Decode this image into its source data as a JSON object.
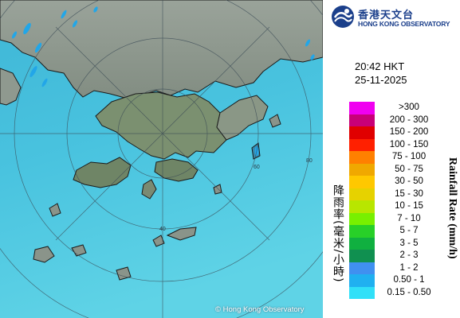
{
  "map": {
    "copyright": "© Hong Kong Observatory",
    "ring_labels": [
      "40",
      "60",
      "80"
    ]
  },
  "header": {
    "org_name_cn": "香港天文台",
    "org_name_en": "HONG KONG OBSERVATORY",
    "logo_icon": "hko-logo-icon"
  },
  "timestamp": {
    "time": "20:42 HKT",
    "date": "25-11-2025"
  },
  "legend": {
    "label_cn": "降雨率(毫米/小時)",
    "label_en": "Rainfall Rate (mm/h)",
    "items": [
      {
        "range": ">300",
        "color": "#f000f0"
      },
      {
        "range": "200 - 300",
        "color": "#c80078"
      },
      {
        "range": "150 - 200",
        "color": "#e00000"
      },
      {
        "range": "100 - 150",
        "color": "#ff2000"
      },
      {
        "range": "75 - 100",
        "color": "#ff8000"
      },
      {
        "range": "50 - 75",
        "color": "#f0a800"
      },
      {
        "range": "30 - 50",
        "color": "#ffc800"
      },
      {
        "range": "15 - 30",
        "color": "#e6d200"
      },
      {
        "range": "10 - 15",
        "color": "#b8e600"
      },
      {
        "range": "7 - 10",
        "color": "#78f000"
      },
      {
        "range": "5 - 7",
        "color": "#28d028"
      },
      {
        "range": "3 - 5",
        "color": "#10b040"
      },
      {
        "range": "2 - 3",
        "color": "#109050"
      },
      {
        "range": "1 - 2",
        "color": "#4090f0"
      },
      {
        "range": "0.50 - 1",
        "color": "#20b0f0"
      },
      {
        "range": "0.15 - 0.50",
        "color": "#30e0f8"
      }
    ]
  }
}
